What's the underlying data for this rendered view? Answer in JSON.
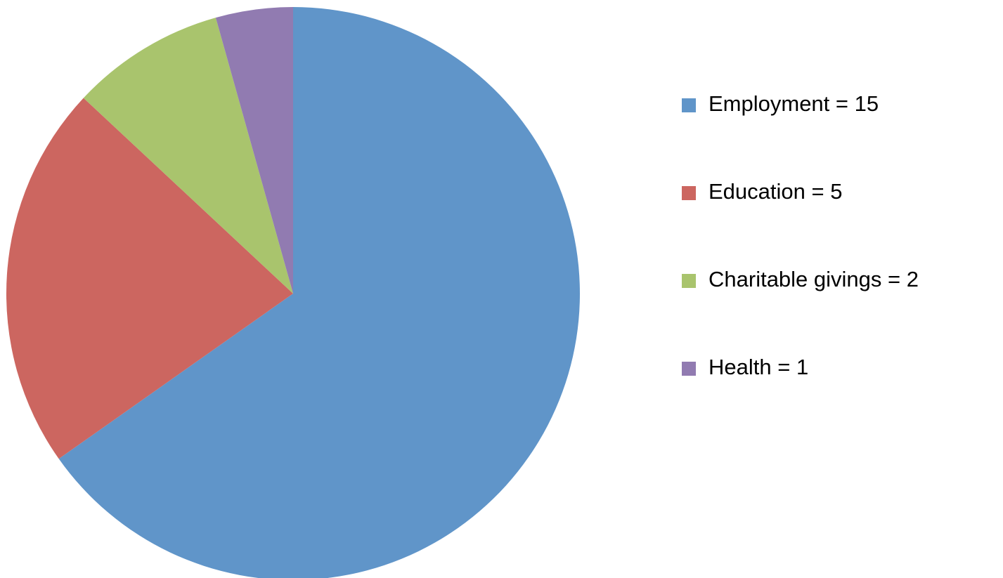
{
  "chart_data": {
    "type": "pie",
    "categories": [
      "Employment = 15",
      "Education = 5",
      "Charitable givings = 2",
      "Health = 1"
    ],
    "values": [
      15,
      5,
      2,
      1
    ],
    "colors": [
      "#6095c9",
      "#cc6660",
      "#a9c46d",
      "#917bb1"
    ],
    "legend": "right"
  }
}
